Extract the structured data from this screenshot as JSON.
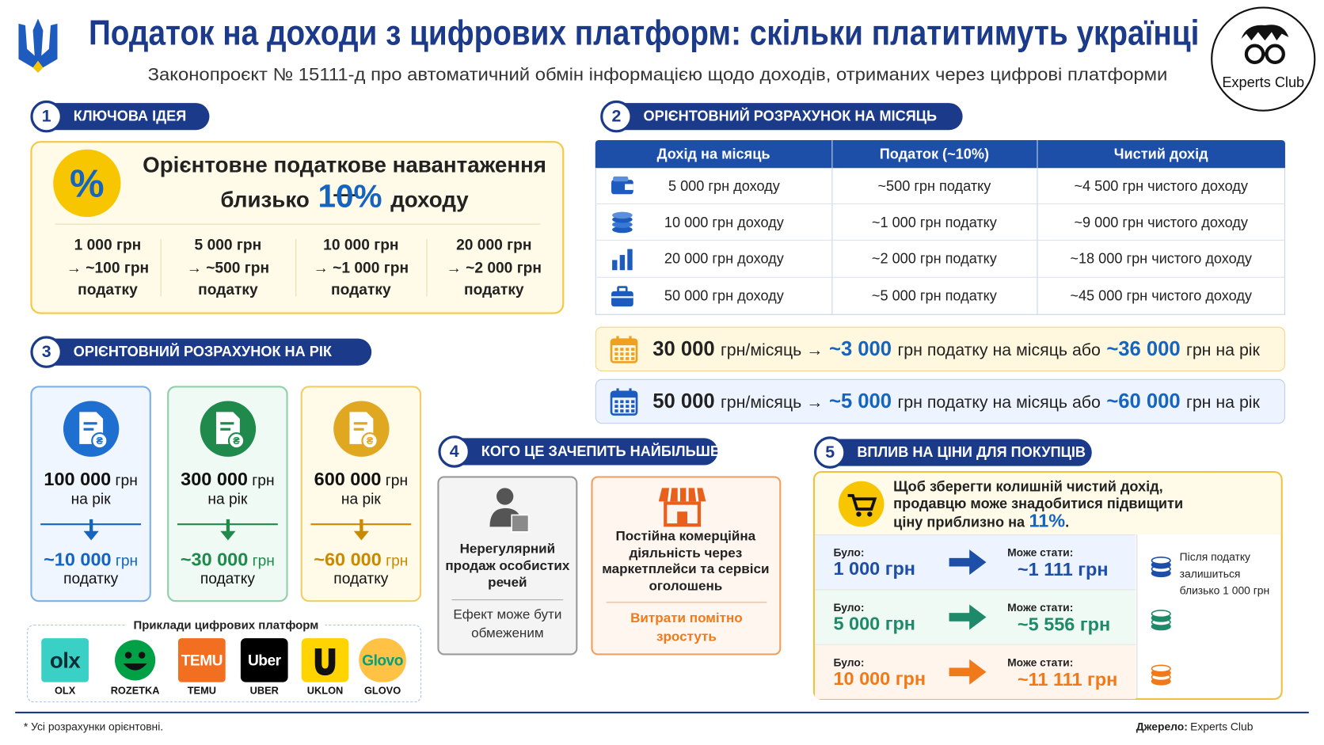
{
  "header": {
    "title": "Податок на доходи з цифрових платформ: скільки платитимуть українці",
    "subtitle": "Законопроєкт № 15111-д про автоматичний обмін інформацією щодо доходів, отриманих через цифрові платформи",
    "logo": "Experts Club"
  },
  "key_idea": {
    "number": "1",
    "title": "КЛЮЧОВА ІДЕЯ",
    "icon": "%",
    "headline": [
      "Орієнтовне податкове навантаження —",
      "близько",
      "10%",
      "доходу"
    ],
    "examples": [
      [
        "1 000 грн",
        "→ ~100 грн",
        "податку"
      ],
      [
        "5 000 грн",
        "→ ~500 грн",
        "податку"
      ],
      [
        "10 000 грн",
        "→ ~1 000 грн",
        "податку"
      ],
      [
        "20 000 грн",
        "→ ~2 000 грн",
        "податку"
      ]
    ]
  },
  "monthly": {
    "number": "2",
    "title": "ОРІЄНТОВНИЙ РОЗРАХУНОК НА МІСЯЦЬ",
    "table": {
      "header": [
        "Дохід на місяць",
        "Податок (~10%)",
        "Чистий дохід"
      ],
      "rows": [
        [
          "5 000 грн доходу",
          "~500 грн податку",
          "~4 500 грн чистого доходу"
        ],
        [
          "10 000 грн доходу",
          "~1 000 грн податку",
          "~9 000 грн чистого доходу"
        ],
        [
          "20 000 грн доходу",
          "~2 000 грн податку",
          "~18 000 грн чистого доходу"
        ],
        [
          "50 000 грн доходу",
          "~5 000 грн податку",
          "~45 000 грн чистого доходу"
        ]
      ]
    },
    "highlights": [
      [
        "30 000",
        "грн/місяць →",
        "~3 000",
        "грн податку на місяць або",
        "~36 000",
        "грн на рік"
      ],
      [
        "50 000",
        "грн/місяць →",
        "~5 000",
        "грн податку на місяць або",
        "~60 000",
        "грн на рік"
      ]
    ]
  },
  "yearly": {
    "number": "3",
    "title": "ОРІЄНТОВНИЙ РОЗРАХУНОК НА РІК",
    "cards": [
      {
        "income": "100 000",
        "income_unit": "грн",
        "period": "на рік",
        "tax": "~10 000",
        "tax_unit": "грн",
        "tax_label": "податку"
      },
      {
        "income": "300 000",
        "income_unit": "грн",
        "period": "на рік",
        "tax": "~30 000",
        "tax_unit": "грн",
        "tax_label": "податку"
      },
      {
        "income": "600 000",
        "income_unit": "грн",
        "period": "на рік",
        "tax": "~60 000",
        "tax_unit": "грн",
        "tax_label": "податку"
      }
    ],
    "platforms": {
      "title": "Приклади цифрових платформ",
      "items": [
        {
          "logo": "olx",
          "name": "OLX"
        },
        {
          "name": "ROZETKA"
        },
        {
          "logo": "TEMU",
          "name": "TEMU"
        },
        {
          "logo": "Uber",
          "name": "UBER"
        },
        {
          "name": "UKLON"
        },
        {
          "logo": "Glovo",
          "name": "GLOVO"
        }
      ]
    }
  },
  "affected": {
    "number": "4",
    "title": "КОГО ЦЕ ЗАЧЕПИТЬ НАЙБІЛЬШЕ",
    "cards": [
      {
        "title": "Нерегулярний продаж особистих речей",
        "note": "Ефект може бути обмеженим"
      },
      {
        "title": "Постійна комерційна діяльність через маркетплейси та сервіси оголошень",
        "note": "Витрати помітно зростуть"
      }
    ]
  },
  "prices": {
    "number": "5",
    "title": "ВПЛИВ НА ЦІНИ ДЛЯ ПОКУПЦІВ",
    "intro": [
      "Щоб зберегти колишній чистий дохід, продавцю може знадобитися підвищити ціну приблизно на",
      "11%",
      "."
    ],
    "rows": [
      {
        "was_label": "Було:",
        "was": "1 000 грн",
        "will_label": "Може стати:",
        "will": "~1 111 грн"
      },
      {
        "was_label": "Було:",
        "was": "5 000 грн",
        "will_label": "Може стати:",
        "will": "~5 556 грн"
      },
      {
        "was_label": "Було:",
        "was": "10 000 грн",
        "will_label": "Може стати:",
        "will": "~11 111 грн"
      }
    ],
    "note": "Після податку залишиться близько 1 000 грн"
  },
  "footer": {
    "note": "* Усі розрахунки орієнтовні.",
    "source_label": "Джерело:",
    "source": "Experts Club"
  }
}
